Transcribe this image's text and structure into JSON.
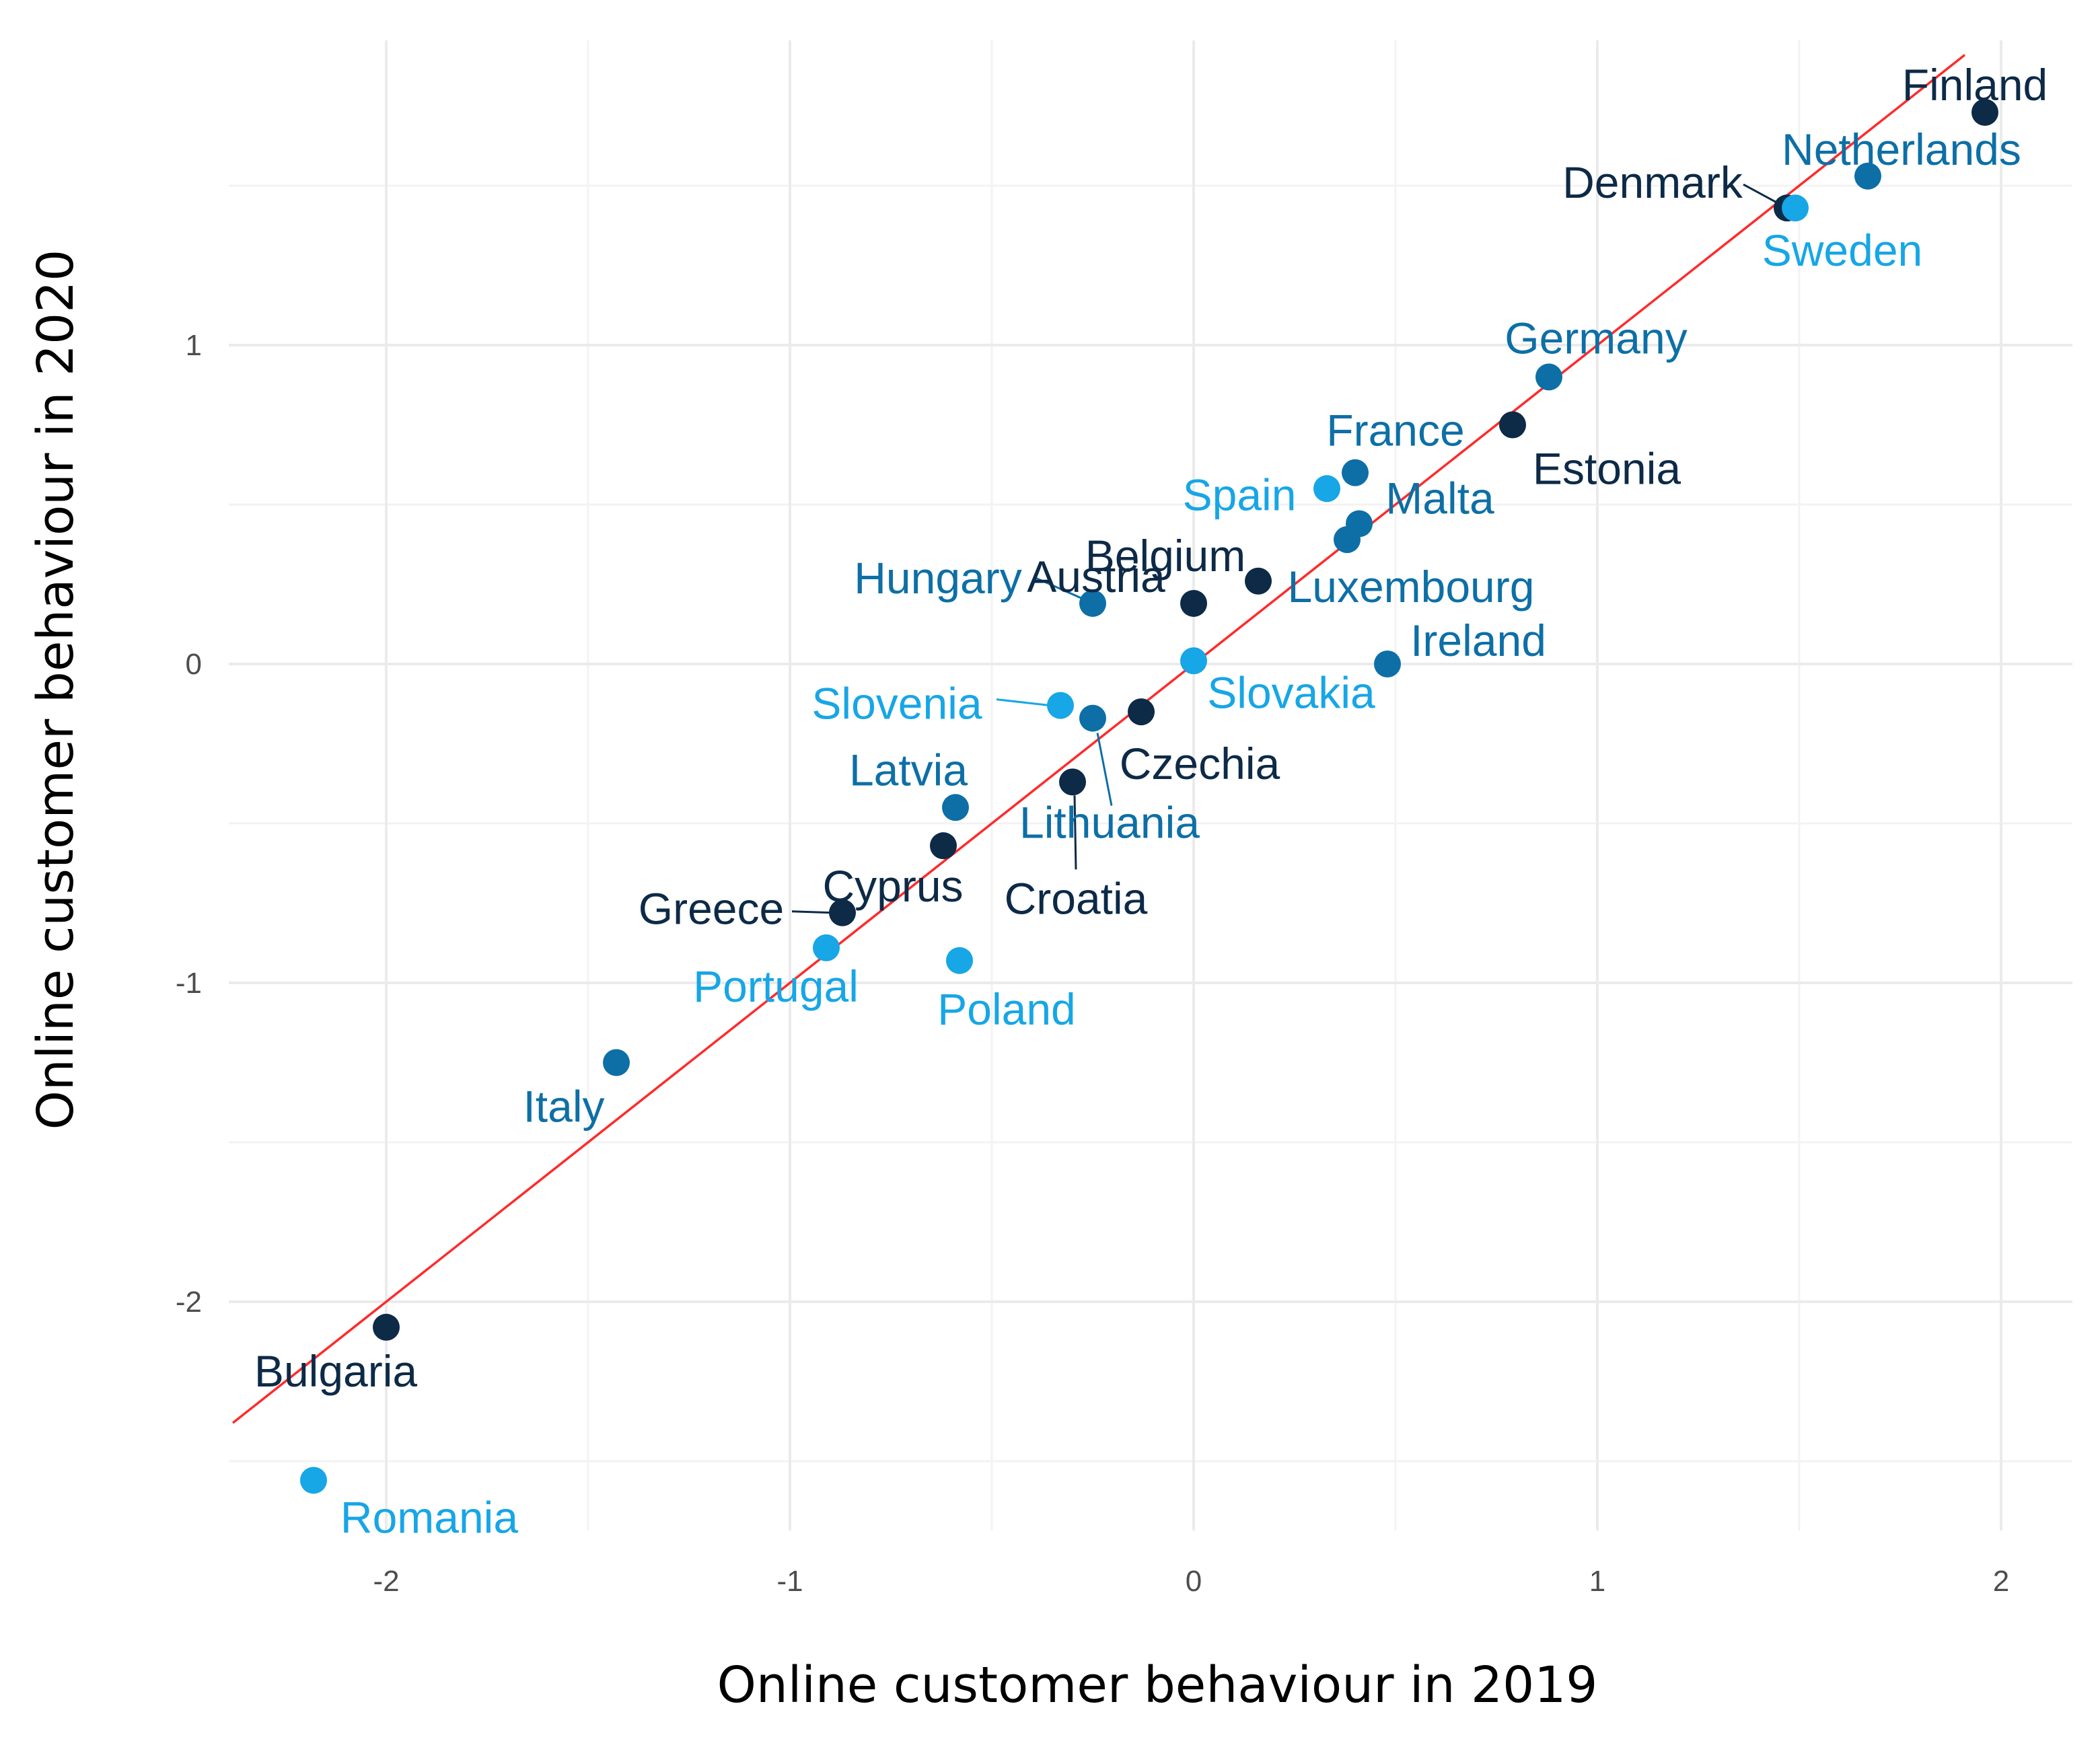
{
  "chart_data": {
    "type": "scatter",
    "title": "",
    "xlabel": "Online customer behaviour in 2019",
    "ylabel": "Online customer behaviour in 2020",
    "xlim": [
      -2.38,
      2.17
    ],
    "ylim": [
      -2.73,
      1.95
    ],
    "x_ticks": [
      -2,
      -1,
      0,
      1,
      2
    ],
    "y_ticks": [
      -2,
      -1,
      0,
      1
    ],
    "x_tick_labels": [
      "-2",
      "-1",
      "0",
      "1",
      "2"
    ],
    "y_tick_labels": [
      "-2",
      "-1",
      "0",
      "1"
    ],
    "grid": true,
    "reference_line": {
      "label": "y = x",
      "color": "#ff2a2a"
    },
    "colors": {
      "dark": "#0d2a47",
      "mid": "#0d6fa6",
      "light": "#17a6e6"
    },
    "points": [
      {
        "name": "Finland",
        "x": 1.96,
        "y": 1.73,
        "color": "dark"
      },
      {
        "name": "Netherlands",
        "x": 1.67,
        "y": 1.53,
        "color": "mid"
      },
      {
        "name": "Denmark",
        "x": 1.47,
        "y": 1.43,
        "color": "dark"
      },
      {
        "name": "Sweden",
        "x": 1.49,
        "y": 1.43,
        "color": "light"
      },
      {
        "name": "Germany",
        "x": 0.88,
        "y": 0.9,
        "color": "mid"
      },
      {
        "name": "Estonia",
        "x": 0.79,
        "y": 0.75,
        "color": "dark"
      },
      {
        "name": "France",
        "x": 0.4,
        "y": 0.6,
        "color": "mid"
      },
      {
        "name": "Spain",
        "x": 0.33,
        "y": 0.55,
        "color": "light"
      },
      {
        "name": "Malta",
        "x": 0.41,
        "y": 0.44,
        "color": "mid"
      },
      {
        "name": "Luxembourg",
        "x": 0.38,
        "y": 0.39,
        "color": "mid"
      },
      {
        "name": "Belgium",
        "x": 0.16,
        "y": 0.26,
        "color": "dark"
      },
      {
        "name": "Hungary",
        "x": -0.25,
        "y": 0.19,
        "color": "mid"
      },
      {
        "name": "Austria",
        "x": 0.0,
        "y": 0.19,
        "color": "dark"
      },
      {
        "name": "Slovakia",
        "x": 0.0,
        "y": 0.01,
        "color": "light"
      },
      {
        "name": "Ireland",
        "x": 0.48,
        "y": 0.0,
        "color": "mid"
      },
      {
        "name": "Slovenia",
        "x": -0.33,
        "y": -0.13,
        "color": "light"
      },
      {
        "name": "Lithuania",
        "x": -0.25,
        "y": -0.17,
        "color": "mid"
      },
      {
        "name": "Czechia",
        "x": -0.13,
        "y": -0.15,
        "color": "dark"
      },
      {
        "name": "Croatia",
        "x": -0.3,
        "y": -0.37,
        "color": "dark"
      },
      {
        "name": "Latvia",
        "x": -0.59,
        "y": -0.45,
        "color": "mid"
      },
      {
        "name": "Cyprus",
        "x": -0.62,
        "y": -0.57,
        "color": "dark"
      },
      {
        "name": "Greece",
        "x": -0.87,
        "y": -0.78,
        "color": "dark"
      },
      {
        "name": "Portugal",
        "x": -0.91,
        "y": -0.89,
        "color": "light"
      },
      {
        "name": "Poland",
        "x": -0.58,
        "y": -0.93,
        "color": "light"
      },
      {
        "name": "Italy",
        "x": -1.43,
        "y": -1.25,
        "color": "mid"
      },
      {
        "name": "Bulgaria",
        "x": -2.0,
        "y": -2.08,
        "color": "dark"
      },
      {
        "name": "Romania",
        "x": -2.18,
        "y": -2.56,
        "color": "light"
      }
    ]
  }
}
